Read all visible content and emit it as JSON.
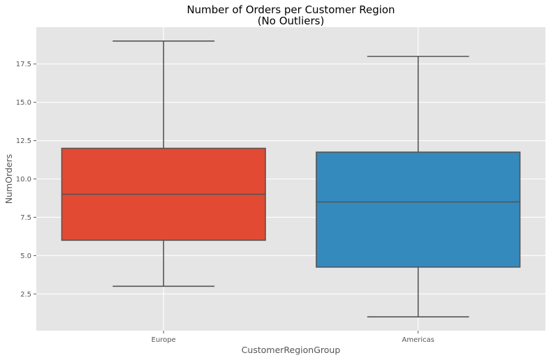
{
  "chart_data": {
    "type": "box",
    "title": "Number of Orders per Customer Region",
    "subtitle": "(No Outliers)",
    "xlabel": "CustomerRegionGroup",
    "ylabel": "NumOrders",
    "categories": [
      "Europe",
      "Americas"
    ],
    "boxes": [
      {
        "category": "Europe",
        "whisker_low": 3,
        "q1": 6,
        "median": 9,
        "q3": 12,
        "whisker_high": 19,
        "color": "#E24A33"
      },
      {
        "category": "Americas",
        "whisker_low": 1,
        "q1": 4.25,
        "median": 8.5,
        "q3": 11.75,
        "whisker_high": 18,
        "color": "#348ABD"
      }
    ],
    "ylim": [
      0.1,
      19.9
    ],
    "yticks": [
      2.5,
      5.0,
      7.5,
      10.0,
      12.5,
      15.0,
      17.5
    ],
    "ytick_labels": [
      "2.5",
      "5.0",
      "7.5",
      "10.0",
      "12.5",
      "15.0",
      "17.5"
    ],
    "grid": true,
    "style": {
      "background": "#E5E5E5",
      "grid_color": "#FFFFFF",
      "line_color": "#555555",
      "text_color": "#555555"
    }
  }
}
